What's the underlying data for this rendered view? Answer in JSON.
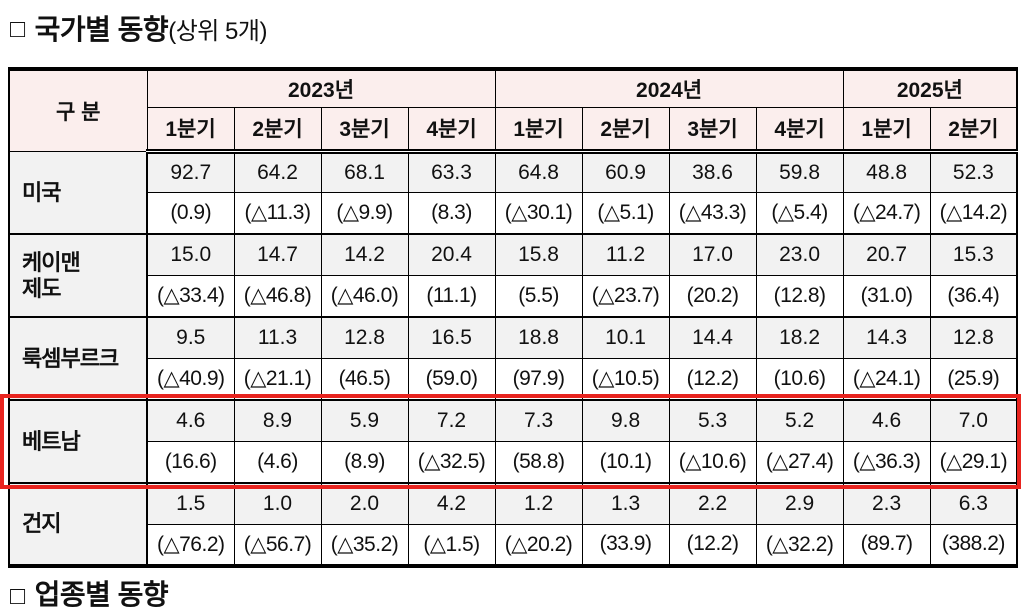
{
  "page": {
    "title_bullet": "□",
    "title": "국가별 동향",
    "title_suffix": "(상위 5개)",
    "partial_next_title_bullet": "□",
    "partial_next_title": "업종별 동향"
  },
  "table": {
    "corner_header": "구 분",
    "year_groups": [
      {
        "label": "2023년",
        "quarters": [
          "1분기",
          "2분기",
          "3분기",
          "4분기"
        ]
      },
      {
        "label": "2024년",
        "quarters": [
          "1분기",
          "2분기",
          "3분기",
          "4분기"
        ]
      },
      {
        "label": "2025년",
        "quarters": [
          "1분기",
          "2분기"
        ]
      }
    ],
    "rows": [
      {
        "country": "미국",
        "highlighted": false,
        "values": [
          "92.7",
          "64.2",
          "68.1",
          "63.3",
          "64.8",
          "60.9",
          "38.6",
          "59.8",
          "48.8",
          "52.3"
        ],
        "changes": [
          "(0.9)",
          "(△11.3)",
          "(△9.9)",
          "(8.3)",
          "(△30.1)",
          "(△5.1)",
          "(△43.3)",
          "(△5.4)",
          "(△24.7)",
          "(△14.2)"
        ]
      },
      {
        "country": "케이맨\n제도",
        "highlighted": false,
        "values": [
          "15.0",
          "14.7",
          "14.2",
          "20.4",
          "15.8",
          "11.2",
          "17.0",
          "23.0",
          "20.7",
          "15.3"
        ],
        "changes": [
          "(△33.4)",
          "(△46.8)",
          "(△46.0)",
          "(11.1)",
          "(5.5)",
          "(△23.7)",
          "(20.2)",
          "(12.8)",
          "(31.0)",
          "(36.4)"
        ]
      },
      {
        "country": "룩셈부르크",
        "highlighted": false,
        "values": [
          "9.5",
          "11.3",
          "12.8",
          "16.5",
          "18.8",
          "10.1",
          "14.4",
          "18.2",
          "14.3",
          "12.8"
        ],
        "changes": [
          "(△40.9)",
          "(△21.1)",
          "(46.5)",
          "(59.0)",
          "(97.9)",
          "(△10.5)",
          "(12.2)",
          "(10.6)",
          "(△24.1)",
          "(25.9)"
        ]
      },
      {
        "country": "베트남",
        "highlighted": true,
        "values": [
          "4.6",
          "8.9",
          "5.9",
          "7.2",
          "7.3",
          "9.8",
          "5.3",
          "5.2",
          "4.6",
          "7.0"
        ],
        "changes": [
          "(16.6)",
          "(4.6)",
          "(8.9)",
          "(△32.5)",
          "(58.8)",
          "(10.1)",
          "(△10.6)",
          "(△27.4)",
          "(△36.3)",
          "(△29.1)"
        ]
      },
      {
        "country": "건지",
        "highlighted": false,
        "values": [
          "1.5",
          "1.0",
          "2.0",
          "4.2",
          "1.2",
          "1.3",
          "2.2",
          "2.9",
          "2.3",
          "6.3"
        ],
        "changes": [
          "(△76.2)",
          "(△56.7)",
          "(△35.2)",
          "(△1.5)",
          "(△20.2)",
          "(33.9)",
          "(12.2)",
          "(△32.2)",
          "(89.7)",
          "(388.2)"
        ]
      }
    ]
  },
  "colors": {
    "header_bg": "#fbeeed",
    "value_bg": "#f2f2f2",
    "highlight_border": "#e8241f"
  }
}
